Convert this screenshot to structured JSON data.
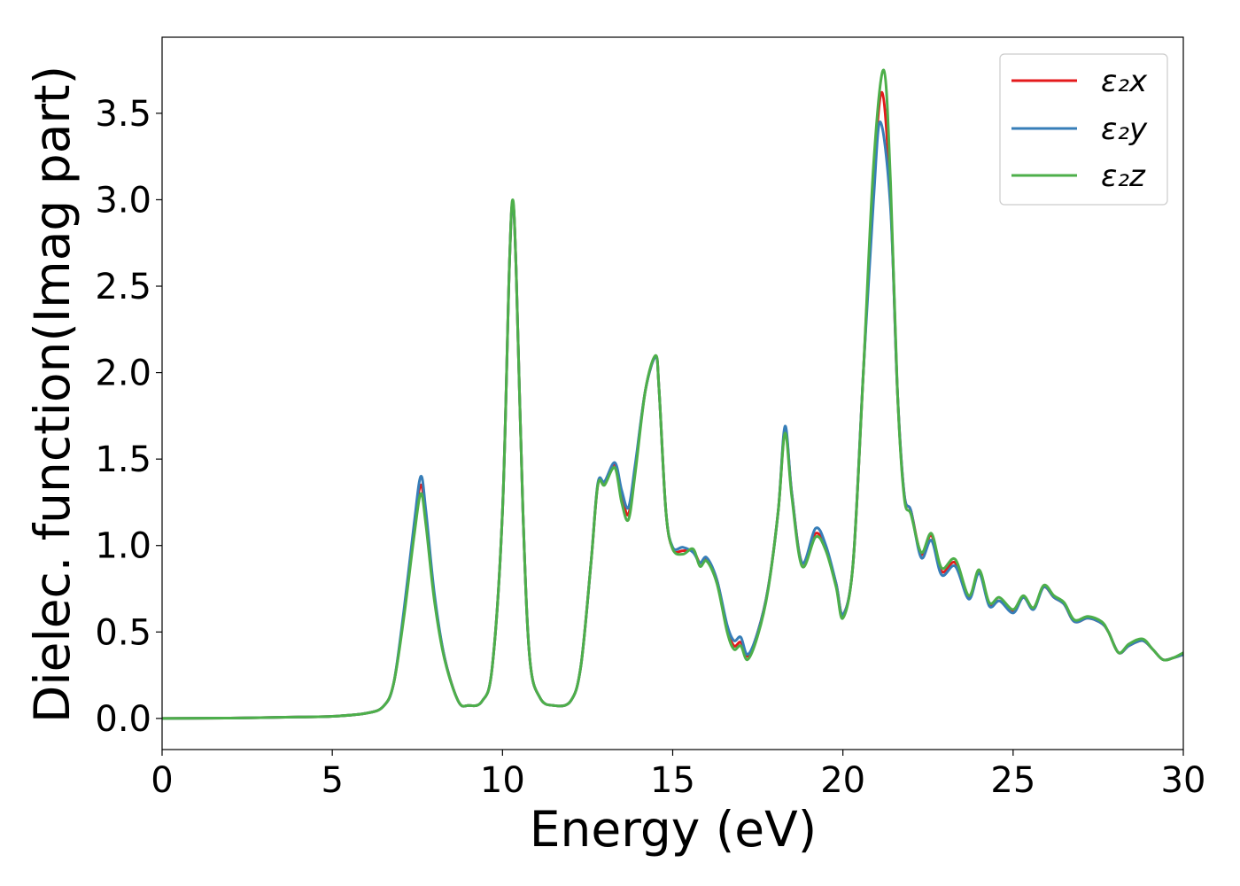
{
  "chart_data": {
    "type": "line",
    "xlabel": "Energy (eV)",
    "ylabel": "Dielec. function(Imag part)",
    "xlim": [
      0,
      30
    ],
    "ylim": [
      -0.18,
      3.94
    ],
    "xticks": [
      0,
      5,
      10,
      15,
      20,
      25,
      30
    ],
    "yticks": [
      0.0,
      0.5,
      1.0,
      1.5,
      2.0,
      2.5,
      3.0,
      3.5
    ],
    "xtick_labels": [
      "0",
      "5",
      "10",
      "15",
      "20",
      "25",
      "30"
    ],
    "ytick_labels": [
      "0.0",
      "0.5",
      "1.0",
      "1.5",
      "2.0",
      "2.5",
      "3.0",
      "3.5"
    ],
    "grid": false,
    "legend_position": "top-right",
    "series": [
      {
        "name": "ε₂x",
        "color": "#e41a1c",
        "points": [
          [
            0,
            0.0
          ],
          [
            2,
            0.002
          ],
          [
            4,
            0.008
          ],
          [
            5,
            0.012
          ],
          [
            6,
            0.03
          ],
          [
            6.5,
            0.07
          ],
          [
            6.8,
            0.2
          ],
          [
            7.1,
            0.6
          ],
          [
            7.4,
            1.1
          ],
          [
            7.6,
            1.35
          ],
          [
            7.75,
            1.15
          ],
          [
            8.0,
            0.7
          ],
          [
            8.3,
            0.35
          ],
          [
            8.7,
            0.1
          ],
          [
            9.0,
            0.075
          ],
          [
            9.4,
            0.1
          ],
          [
            9.7,
            0.3
          ],
          [
            10.0,
            1.2
          ],
          [
            10.2,
            2.6
          ],
          [
            10.3,
            2.98
          ],
          [
            10.4,
            2.6
          ],
          [
            10.6,
            1.2
          ],
          [
            10.8,
            0.35
          ],
          [
            11.1,
            0.12
          ],
          [
            11.5,
            0.075
          ],
          [
            12.0,
            0.1
          ],
          [
            12.3,
            0.3
          ],
          [
            12.6,
            0.9
          ],
          [
            12.8,
            1.35
          ],
          [
            13.0,
            1.36
          ],
          [
            13.3,
            1.47
          ],
          [
            13.5,
            1.3
          ],
          [
            13.7,
            1.18
          ],
          [
            13.9,
            1.45
          ],
          [
            14.2,
            1.9
          ],
          [
            14.5,
            2.09
          ],
          [
            14.6,
            1.9
          ],
          [
            14.8,
            1.2
          ],
          [
            15.0,
            0.98
          ],
          [
            15.3,
            0.97
          ],
          [
            15.6,
            0.97
          ],
          [
            15.8,
            0.9
          ],
          [
            16.0,
            0.92
          ],
          [
            16.3,
            0.8
          ],
          [
            16.6,
            0.52
          ],
          [
            16.8,
            0.42
          ],
          [
            17.0,
            0.44
          ],
          [
            17.2,
            0.36
          ],
          [
            17.5,
            0.5
          ],
          [
            17.8,
            0.75
          ],
          [
            18.1,
            1.2
          ],
          [
            18.3,
            1.67
          ],
          [
            18.5,
            1.3
          ],
          [
            18.8,
            0.9
          ],
          [
            19.2,
            1.07
          ],
          [
            19.5,
            0.98
          ],
          [
            19.8,
            0.78
          ],
          [
            20.0,
            0.6
          ],
          [
            20.3,
            0.9
          ],
          [
            20.6,
            2.0
          ],
          [
            20.9,
            3.1
          ],
          [
            21.15,
            3.62
          ],
          [
            21.4,
            3.0
          ],
          [
            21.6,
            1.9
          ],
          [
            21.8,
            1.3
          ],
          [
            22.0,
            1.2
          ],
          [
            22.3,
            0.95
          ],
          [
            22.6,
            1.06
          ],
          [
            22.9,
            0.85
          ],
          [
            23.3,
            0.9
          ],
          [
            23.7,
            0.7
          ],
          [
            24.0,
            0.85
          ],
          [
            24.3,
            0.66
          ],
          [
            24.6,
            0.68
          ],
          [
            25.0,
            0.62
          ],
          [
            25.3,
            0.7
          ],
          [
            25.6,
            0.64
          ],
          [
            25.9,
            0.76
          ],
          [
            26.2,
            0.7
          ],
          [
            26.5,
            0.66
          ],
          [
            26.8,
            0.56
          ],
          [
            27.2,
            0.58
          ],
          [
            27.6,
            0.55
          ],
          [
            27.8,
            0.5
          ],
          [
            28.1,
            0.38
          ],
          [
            28.4,
            0.42
          ],
          [
            28.8,
            0.45
          ],
          [
            29.1,
            0.4
          ],
          [
            29.4,
            0.34
          ],
          [
            29.7,
            0.35
          ],
          [
            30.0,
            0.37
          ]
        ]
      },
      {
        "name": "ε₂y",
        "color": "#377eb8",
        "points": [
          [
            0,
            0.0
          ],
          [
            2,
            0.002
          ],
          [
            4,
            0.008
          ],
          [
            5,
            0.012
          ],
          [
            6,
            0.03
          ],
          [
            6.5,
            0.07
          ],
          [
            6.8,
            0.2
          ],
          [
            7.1,
            0.62
          ],
          [
            7.4,
            1.12
          ],
          [
            7.6,
            1.4
          ],
          [
            7.75,
            1.2
          ],
          [
            8.0,
            0.72
          ],
          [
            8.3,
            0.35
          ],
          [
            8.7,
            0.1
          ],
          [
            9.0,
            0.075
          ],
          [
            9.4,
            0.1
          ],
          [
            9.7,
            0.3
          ],
          [
            10.0,
            1.2
          ],
          [
            10.2,
            2.6
          ],
          [
            10.3,
            2.98
          ],
          [
            10.4,
            2.6
          ],
          [
            10.6,
            1.2
          ],
          [
            10.8,
            0.35
          ],
          [
            11.1,
            0.12
          ],
          [
            11.5,
            0.075
          ],
          [
            12.0,
            0.1
          ],
          [
            12.3,
            0.3
          ],
          [
            12.6,
            0.9
          ],
          [
            12.8,
            1.36
          ],
          [
            13.0,
            1.37
          ],
          [
            13.3,
            1.48
          ],
          [
            13.5,
            1.32
          ],
          [
            13.7,
            1.22
          ],
          [
            13.9,
            1.47
          ],
          [
            14.2,
            1.9
          ],
          [
            14.5,
            2.09
          ],
          [
            14.6,
            1.9
          ],
          [
            14.8,
            1.2
          ],
          [
            15.0,
            0.99
          ],
          [
            15.3,
            0.99
          ],
          [
            15.6,
            0.96
          ],
          [
            15.8,
            0.9
          ],
          [
            16.0,
            0.93
          ],
          [
            16.3,
            0.8
          ],
          [
            16.6,
            0.54
          ],
          [
            16.8,
            0.45
          ],
          [
            17.0,
            0.47
          ],
          [
            17.2,
            0.37
          ],
          [
            17.5,
            0.5
          ],
          [
            17.8,
            0.75
          ],
          [
            18.1,
            1.2
          ],
          [
            18.3,
            1.69
          ],
          [
            18.5,
            1.3
          ],
          [
            18.8,
            0.9
          ],
          [
            19.2,
            1.1
          ],
          [
            19.5,
            1.0
          ],
          [
            19.8,
            0.78
          ],
          [
            20.0,
            0.6
          ],
          [
            20.3,
            0.9
          ],
          [
            20.6,
            2.0
          ],
          [
            20.9,
            3.0
          ],
          [
            21.1,
            3.45
          ],
          [
            21.4,
            2.95
          ],
          [
            21.6,
            1.9
          ],
          [
            21.8,
            1.3
          ],
          [
            22.0,
            1.2
          ],
          [
            22.3,
            0.93
          ],
          [
            22.6,
            1.03
          ],
          [
            22.9,
            0.83
          ],
          [
            23.3,
            0.88
          ],
          [
            23.7,
            0.69
          ],
          [
            24.0,
            0.84
          ],
          [
            24.3,
            0.65
          ],
          [
            24.6,
            0.68
          ],
          [
            25.0,
            0.61
          ],
          [
            25.3,
            0.7
          ],
          [
            25.6,
            0.63
          ],
          [
            25.9,
            0.76
          ],
          [
            26.2,
            0.7
          ],
          [
            26.5,
            0.66
          ],
          [
            26.8,
            0.56
          ],
          [
            27.2,
            0.58
          ],
          [
            27.6,
            0.55
          ],
          [
            27.8,
            0.5
          ],
          [
            28.1,
            0.38
          ],
          [
            28.4,
            0.42
          ],
          [
            28.8,
            0.45
          ],
          [
            29.1,
            0.4
          ],
          [
            29.4,
            0.34
          ],
          [
            29.7,
            0.35
          ],
          [
            30.0,
            0.37
          ]
        ]
      },
      {
        "name": "ε₂z",
        "color": "#4daf4a",
        "points": [
          [
            0,
            0.0
          ],
          [
            2,
            0.002
          ],
          [
            4,
            0.008
          ],
          [
            5,
            0.012
          ],
          [
            6,
            0.03
          ],
          [
            6.5,
            0.07
          ],
          [
            6.8,
            0.2
          ],
          [
            7.1,
            0.58
          ],
          [
            7.4,
            1.05
          ],
          [
            7.6,
            1.3
          ],
          [
            7.75,
            1.12
          ],
          [
            8.0,
            0.68
          ],
          [
            8.3,
            0.34
          ],
          [
            8.7,
            0.1
          ],
          [
            9.0,
            0.075
          ],
          [
            9.4,
            0.1
          ],
          [
            9.7,
            0.3
          ],
          [
            10.0,
            1.2
          ],
          [
            10.2,
            2.6
          ],
          [
            10.3,
            3.0
          ],
          [
            10.4,
            2.6
          ],
          [
            10.6,
            1.2
          ],
          [
            10.8,
            0.35
          ],
          [
            11.1,
            0.12
          ],
          [
            11.5,
            0.075
          ],
          [
            12.0,
            0.1
          ],
          [
            12.3,
            0.3
          ],
          [
            12.6,
            0.9
          ],
          [
            12.8,
            1.35
          ],
          [
            13.0,
            1.35
          ],
          [
            13.3,
            1.45
          ],
          [
            13.5,
            1.25
          ],
          [
            13.7,
            1.15
          ],
          [
            13.9,
            1.42
          ],
          [
            14.2,
            1.9
          ],
          [
            14.5,
            2.1
          ],
          [
            14.6,
            1.9
          ],
          [
            14.8,
            1.2
          ],
          [
            15.0,
            0.98
          ],
          [
            15.3,
            0.95
          ],
          [
            15.6,
            0.98
          ],
          [
            15.8,
            0.88
          ],
          [
            16.0,
            0.91
          ],
          [
            16.3,
            0.78
          ],
          [
            16.6,
            0.5
          ],
          [
            16.8,
            0.4
          ],
          [
            17.0,
            0.42
          ],
          [
            17.2,
            0.34
          ],
          [
            17.5,
            0.48
          ],
          [
            17.8,
            0.74
          ],
          [
            18.1,
            1.2
          ],
          [
            18.3,
            1.65
          ],
          [
            18.5,
            1.28
          ],
          [
            18.8,
            0.88
          ],
          [
            19.2,
            1.05
          ],
          [
            19.5,
            0.97
          ],
          [
            19.8,
            0.76
          ],
          [
            20.0,
            0.58
          ],
          [
            20.3,
            0.9
          ],
          [
            20.6,
            2.0
          ],
          [
            20.9,
            3.2
          ],
          [
            21.2,
            3.75
          ],
          [
            21.4,
            3.1
          ],
          [
            21.6,
            1.9
          ],
          [
            21.8,
            1.28
          ],
          [
            22.0,
            1.18
          ],
          [
            22.3,
            0.96
          ],
          [
            22.6,
            1.07
          ],
          [
            22.9,
            0.87
          ],
          [
            23.3,
            0.92
          ],
          [
            23.7,
            0.71
          ],
          [
            24.0,
            0.86
          ],
          [
            24.3,
            0.67
          ],
          [
            24.6,
            0.7
          ],
          [
            25.0,
            0.63
          ],
          [
            25.3,
            0.71
          ],
          [
            25.6,
            0.64
          ],
          [
            25.9,
            0.77
          ],
          [
            26.2,
            0.71
          ],
          [
            26.5,
            0.67
          ],
          [
            26.8,
            0.57
          ],
          [
            27.2,
            0.59
          ],
          [
            27.6,
            0.56
          ],
          [
            27.8,
            0.5
          ],
          [
            28.1,
            0.38
          ],
          [
            28.4,
            0.43
          ],
          [
            28.8,
            0.46
          ],
          [
            29.1,
            0.4
          ],
          [
            29.4,
            0.34
          ],
          [
            29.7,
            0.35
          ],
          [
            30.0,
            0.38
          ]
        ]
      }
    ]
  }
}
